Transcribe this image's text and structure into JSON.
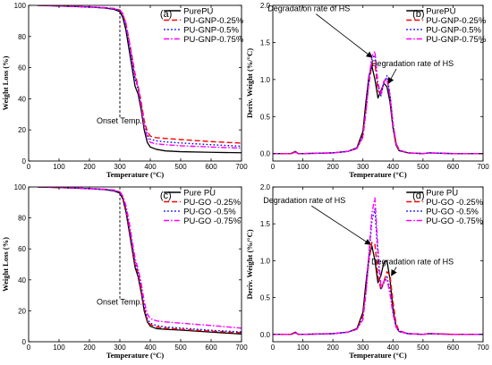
{
  "chart_data": [
    {
      "id": "a",
      "type": "line",
      "panel_label": "(a)",
      "xlabel": "Temperature (°C)",
      "ylabel": "Weight Loss (%)",
      "xlim": [
        0,
        700
      ],
      "ylim": [
        0,
        100
      ],
      "xticks": [
        0,
        100,
        200,
        300,
        400,
        500,
        600,
        700
      ],
      "yticks": [
        0,
        20,
        40,
        60,
        80,
        100
      ],
      "legend_position": "top-right",
      "series": [
        {
          "name": "PurePU",
          "color": "#000000",
          "dash": "solid",
          "x": [
            30,
            100,
            200,
            250,
            280,
            300,
            310,
            320,
            330,
            340,
            350,
            360,
            370,
            380,
            390,
            400,
            420,
            450,
            500,
            600,
            700
          ],
          "y": [
            100,
            99.6,
            98.9,
            98.3,
            97.5,
            96,
            92,
            84,
            72,
            60,
            48,
            43,
            33,
            20,
            12,
            9,
            7.5,
            6.5,
            6,
            5.6,
            5.3
          ]
        },
        {
          "name": "PU-GNP-0.25%",
          "color": "#ff0000",
          "dash": "dash",
          "x": [
            30,
            100,
            200,
            250,
            280,
            300,
            310,
            320,
            330,
            340,
            350,
            360,
            370,
            380,
            390,
            400,
            420,
            450,
            500,
            600,
            700
          ],
          "y": [
            100,
            99.7,
            99,
            98.5,
            98,
            97,
            94,
            88,
            78,
            67,
            56,
            48,
            38,
            26,
            19,
            16,
            15,
            14.5,
            13.8,
            12.5,
            11.5
          ]
        },
        {
          "name": "PU-GNP-0.5%",
          "color": "#0000ff",
          "dash": "dot",
          "x": [
            30,
            100,
            200,
            250,
            280,
            300,
            310,
            320,
            330,
            340,
            350,
            360,
            370,
            380,
            390,
            400,
            420,
            450,
            500,
            600,
            700
          ],
          "y": [
            100,
            99.6,
            98.9,
            98.4,
            97.8,
            96.8,
            93.5,
            87,
            76,
            64,
            53,
            46,
            36,
            24,
            17,
            14,
            13,
            12.3,
            11.6,
            10.5,
            9.5
          ]
        },
        {
          "name": "PU-GNP-0.75%",
          "color": "#ff00ff",
          "dash": "dashdot",
          "x": [
            30,
            100,
            200,
            250,
            280,
            300,
            310,
            320,
            330,
            340,
            350,
            360,
            370,
            380,
            390,
            400,
            420,
            450,
            500,
            600,
            700
          ],
          "y": [
            100,
            99.7,
            99,
            98.5,
            98,
            97.2,
            94.5,
            88.5,
            78,
            66,
            54,
            47,
            36,
            23,
            15,
            12,
            11,
            10.5,
            9.8,
            9,
            8.3
          ]
        }
      ],
      "vline": {
        "x": 300,
        "label": "Onset Temp."
      }
    },
    {
      "id": "b",
      "type": "line",
      "panel_label": "(b)",
      "xlabel": "Temperature (°C)",
      "ylabel": "Deriv. Weight (%/°C)",
      "xlim": [
        0,
        700
      ],
      "ylim": [
        -0.1,
        2.0
      ],
      "xticks": [
        0,
        100,
        200,
        300,
        400,
        500,
        600,
        700
      ],
      "yticks": [
        0.0,
        0.5,
        1.0,
        1.5,
        2.0
      ],
      "legend_position": "top-right",
      "annotations": [
        {
          "text": "Degradation rate of HS",
          "x": 120,
          "y": 1.92,
          "arrow_to": [
            330,
            1.3
          ]
        },
        {
          "text": "Degradation rate of HS",
          "x": 465,
          "y": 1.18,
          "arrow_to": [
            385,
            0.95
          ]
        }
      ],
      "series": [
        {
          "name": "PurePU",
          "color": "#000000",
          "dash": "solid",
          "x": [
            0,
            60,
            75,
            85,
            100,
            200,
            250,
            280,
            300,
            310,
            320,
            330,
            340,
            350,
            360,
            370,
            380,
            390,
            400,
            410,
            420,
            450,
            500,
            520,
            600,
            700
          ],
          "y": [
            0,
            0,
            0.03,
            0,
            0,
            0.01,
            0.03,
            0.08,
            0.3,
            0.7,
            1.05,
            1.18,
            1.0,
            0.75,
            0.85,
            0.95,
            0.9,
            0.7,
            0.35,
            0.12,
            0.04,
            0.01,
            0,
            0.01,
            0,
            0
          ]
        },
        {
          "name": "PU-GNP-0.25%",
          "color": "#ff0000",
          "dash": "dash",
          "x": [
            0,
            60,
            75,
            85,
            100,
            200,
            250,
            280,
            300,
            310,
            320,
            330,
            340,
            350,
            360,
            370,
            380,
            390,
            400,
            410,
            420,
            450,
            500,
            520,
            600,
            700
          ],
          "y": [
            0,
            0,
            0.02,
            0,
            0,
            0.01,
            0.03,
            0.07,
            0.25,
            0.6,
            0.95,
            1.2,
            1.22,
            0.85,
            0.8,
            0.98,
            1.0,
            0.78,
            0.4,
            0.15,
            0.05,
            0.01,
            0,
            0.01,
            0,
            0
          ]
        },
        {
          "name": "PU-GNP-0.5%",
          "color": "#0000ff",
          "dash": "dot",
          "x": [
            0,
            60,
            75,
            85,
            100,
            200,
            250,
            280,
            300,
            310,
            320,
            330,
            340,
            350,
            360,
            370,
            380,
            390,
            400,
            410,
            420,
            450,
            500,
            520,
            600,
            700
          ],
          "y": [
            0,
            0,
            0.02,
            0,
            0,
            0.01,
            0.03,
            0.07,
            0.24,
            0.58,
            0.98,
            1.28,
            1.33,
            0.9,
            0.78,
            0.96,
            1.05,
            0.8,
            0.42,
            0.15,
            0.05,
            0.01,
            0,
            0.01,
            0,
            0
          ]
        },
        {
          "name": "PU-GNP-0.75%",
          "color": "#ff00ff",
          "dash": "dashdot",
          "x": [
            0,
            60,
            75,
            85,
            100,
            200,
            250,
            280,
            300,
            310,
            320,
            330,
            340,
            350,
            360,
            370,
            380,
            390,
            400,
            410,
            420,
            450,
            500,
            520,
            600,
            700
          ],
          "y": [
            0,
            0,
            0.02,
            0,
            0,
            0.01,
            0.03,
            0.07,
            0.22,
            0.55,
            1.0,
            1.32,
            1.38,
            0.95,
            0.8,
            0.97,
            1.02,
            0.78,
            0.4,
            0.14,
            0.05,
            0.01,
            0,
            0.01,
            0,
            0
          ]
        }
      ]
    },
    {
      "id": "c",
      "type": "line",
      "panel_label": "(c)",
      "xlabel": "Temperature (°C)",
      "ylabel": "Weight Loss (%)",
      "xlim": [
        0,
        700
      ],
      "ylim": [
        0,
        100
      ],
      "xticks": [
        0,
        100,
        200,
        300,
        400,
        500,
        600,
        700
      ],
      "yticks": [
        0,
        20,
        40,
        60,
        80,
        100
      ],
      "legend_position": "top-right",
      "series": [
        {
          "name": "Pure PU",
          "color": "#000000",
          "dash": "solid",
          "x": [
            30,
            100,
            200,
            250,
            280,
            300,
            310,
            320,
            330,
            340,
            350,
            360,
            370,
            380,
            390,
            400,
            420,
            450,
            500,
            600,
            700
          ],
          "y": [
            100,
            99.6,
            98.9,
            98.3,
            97.5,
            96,
            92,
            84,
            72,
            60,
            48,
            42,
            32,
            20,
            13,
            10,
            8.5,
            8,
            7.5,
            6.2,
            5
          ]
        },
        {
          "name": "PU-GO -0.25%",
          "color": "#ff0000",
          "dash": "dash",
          "x": [
            30,
            100,
            200,
            250,
            280,
            300,
            310,
            320,
            330,
            340,
            350,
            360,
            370,
            380,
            390,
            400,
            420,
            450,
            500,
            600,
            700
          ],
          "y": [
            100,
            99.7,
            99,
            98.5,
            98,
            96.8,
            93,
            85.5,
            74,
            62,
            50,
            44,
            34,
            22,
            14,
            11,
            9.6,
            8.8,
            8,
            6.8,
            5.8
          ]
        },
        {
          "name": "PU-GO -0.5%",
          "color": "#0000ff",
          "dash": "dot",
          "x": [
            30,
            100,
            200,
            250,
            280,
            300,
            310,
            320,
            330,
            340,
            350,
            360,
            370,
            380,
            390,
            400,
            420,
            450,
            500,
            600,
            700
          ],
          "y": [
            100,
            99.6,
            98.9,
            98.4,
            97.8,
            96.5,
            93,
            86,
            75,
            63,
            51,
            45,
            35,
            23,
            15,
            12,
            10.5,
            9.6,
            8.8,
            7.4,
            6.3
          ]
        },
        {
          "name": "PU-GO -0.75%",
          "color": "#ff00ff",
          "dash": "dashdot",
          "x": [
            30,
            100,
            200,
            250,
            280,
            300,
            310,
            320,
            330,
            340,
            350,
            360,
            370,
            380,
            390,
            400,
            420,
            450,
            500,
            600,
            700
          ],
          "y": [
            100,
            99.7,
            99,
            98.5,
            98,
            97,
            94,
            88,
            78,
            66,
            54,
            47,
            38,
            26,
            18,
            15,
            13.5,
            12.8,
            12,
            10.5,
            8.8
          ]
        }
      ],
      "vline": {
        "x": 300,
        "label": "Onset Temp."
      }
    },
    {
      "id": "d",
      "type": "line",
      "panel_label": "(d)",
      "xlabel": "Temperature (°C)",
      "ylabel": "Deriv. Weight (%/°C)",
      "xlim": [
        0,
        700
      ],
      "ylim": [
        -0.1,
        2.0
      ],
      "xticks": [
        0,
        100,
        200,
        300,
        400,
        500,
        600,
        700
      ],
      "yticks": [
        0.0,
        0.5,
        1.0,
        1.5,
        2.0
      ],
      "legend_position": "top-right",
      "annotations": [
        {
          "text": "Degradation rate of HS",
          "x": 105,
          "y": 1.78,
          "arrow_to": [
            325,
            1.22
          ]
        },
        {
          "text": "Degradation rate of HS",
          "x": 465,
          "y": 0.95,
          "arrow_to": [
            395,
            0.8
          ]
        }
      ],
      "series": [
        {
          "name": "Pure PU",
          "color": "#000000",
          "dash": "solid",
          "x": [
            0,
            60,
            75,
            85,
            100,
            200,
            250,
            280,
            300,
            310,
            320,
            330,
            340,
            350,
            360,
            370,
            380,
            390,
            400,
            410,
            420,
            450,
            500,
            520,
            600,
            700
          ],
          "y": [
            0,
            0,
            0.03,
            0,
            0,
            0.01,
            0.03,
            0.08,
            0.3,
            0.7,
            1.05,
            1.2,
            1.0,
            0.7,
            0.8,
            0.98,
            1.0,
            0.75,
            0.35,
            0.12,
            0.04,
            0.01,
            0,
            0.01,
            0,
            0
          ]
        },
        {
          "name": "PU-GO -0.25%",
          "color": "#ff0000",
          "dash": "dash",
          "x": [
            0,
            60,
            75,
            85,
            100,
            200,
            250,
            280,
            300,
            310,
            320,
            330,
            340,
            350,
            360,
            370,
            380,
            390,
            400,
            410,
            420,
            450,
            500,
            520,
            600,
            700
          ],
          "y": [
            0,
            0,
            0.02,
            0,
            0,
            0.01,
            0.03,
            0.07,
            0.25,
            0.6,
            1.0,
            1.25,
            1.22,
            0.8,
            0.6,
            0.72,
            0.85,
            0.8,
            0.45,
            0.15,
            0.05,
            0.01,
            0,
            0.01,
            0,
            0
          ]
        },
        {
          "name": "PU-GO -0.5%",
          "color": "#0000ff",
          "dash": "dot",
          "x": [
            0,
            60,
            75,
            85,
            100,
            200,
            250,
            280,
            300,
            310,
            320,
            330,
            340,
            350,
            360,
            370,
            380,
            390,
            400,
            410,
            420,
            450,
            500,
            520,
            600,
            700
          ],
          "y": [
            0,
            0,
            0.02,
            0,
            0,
            0.01,
            0.03,
            0.07,
            0.22,
            0.58,
            1.05,
            1.55,
            1.7,
            1.05,
            0.62,
            0.7,
            0.78,
            0.6,
            0.3,
            0.1,
            0.04,
            0.01,
            0,
            0.01,
            0,
            0
          ]
        },
        {
          "name": "PU-GO -0.75%",
          "color": "#ff00ff",
          "dash": "dashdot",
          "x": [
            0,
            60,
            75,
            85,
            100,
            200,
            250,
            280,
            300,
            310,
            320,
            330,
            340,
            350,
            360,
            370,
            380,
            390,
            400,
            410,
            420,
            450,
            500,
            520,
            600,
            700
          ],
          "y": [
            0,
            0,
            0.02,
            0,
            0,
            0.01,
            0.03,
            0.07,
            0.2,
            0.55,
            1.1,
            1.65,
            1.85,
            1.15,
            0.65,
            0.72,
            0.75,
            0.55,
            0.28,
            0.1,
            0.04,
            0.01,
            0,
            0.01,
            0,
            0
          ]
        }
      ]
    }
  ]
}
